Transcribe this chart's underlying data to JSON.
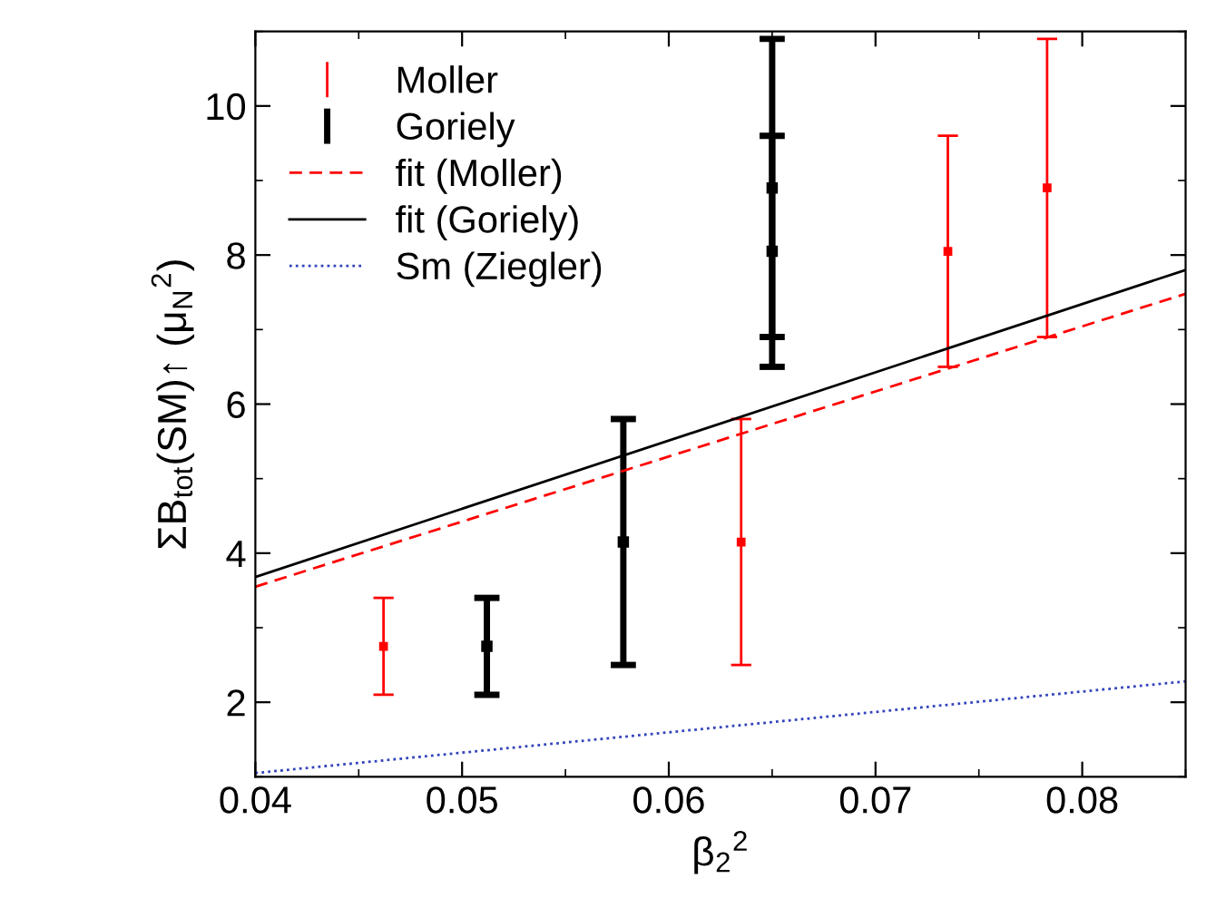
{
  "chart_data": {
    "type": "scatter",
    "xlabel": "β$_{2}$$^{2}$",
    "ylabel": "ΣB$_{tot}$(SM)↑ (μ$_{N}$$^{2}$)",
    "xlim": [
      0.04,
      0.085
    ],
    "ylim": [
      1,
      11
    ],
    "xticks": [
      0.04,
      0.05,
      0.06,
      0.07,
      0.08
    ],
    "yticks": [
      2,
      4,
      6,
      8,
      10
    ],
    "grid": false,
    "legend": "top left",
    "series": [
      {
        "name": "Moller",
        "marker": "square",
        "color": "#ff0000",
        "x": [
          0.0462,
          0.0635,
          0.0735,
          0.0783
        ],
        "values": [
          2.75,
          4.15,
          8.05,
          8.9
        ],
        "errors": [
          [
            2.1,
            3.4
          ],
          [
            2.5,
            5.8
          ],
          [
            6.5,
            9.6
          ],
          [
            6.9,
            10.9
          ]
        ]
      },
      {
        "name": "Goriely",
        "marker": "square",
        "color": "#000000",
        "x": [
          0.0512,
          0.0578,
          0.065,
          0.065
        ],
        "values": [
          2.75,
          4.15,
          8.05,
          8.9
        ],
        "errors": [
          [
            2.1,
            3.4
          ],
          [
            2.5,
            5.8
          ],
          [
            6.5,
            9.6
          ],
          [
            6.9,
            10.9
          ]
        ]
      },
      {
        "name": "fit (Moller)",
        "type": "line",
        "line_style": "dashed",
        "color": "#ff0000",
        "x": [
          0.04,
          0.085
        ],
        "values": [
          3.55,
          7.48
        ]
      },
      {
        "name": "fit (Goriely)",
        "type": "line",
        "line_style": "solid",
        "color": "#000000",
        "x": [
          0.04,
          0.085
        ],
        "values": [
          3.68,
          7.8
        ]
      },
      {
        "name": "Sm (Ziegler)",
        "type": "line",
        "line_style": "dotted",
        "color": "#3344bb",
        "x": [
          0.04,
          0.085
        ],
        "values": [
          1.05,
          2.28
        ]
      }
    ]
  }
}
